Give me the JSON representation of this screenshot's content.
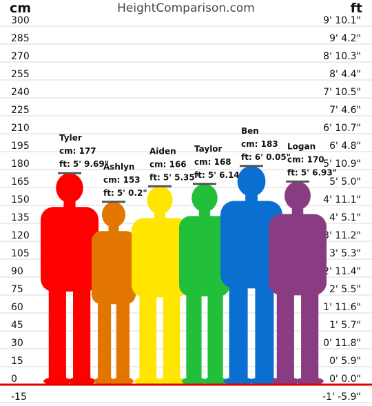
{
  "header": {
    "left_unit": "cm",
    "site_name": "HeightComparison.com",
    "right_unit": "ft"
  },
  "chart_data": {
    "type": "bar",
    "title": "",
    "xlabel": "",
    "ylabel": "cm",
    "ylim": [
      -15,
      300
    ],
    "grid": true,
    "categories": [
      "Tyler",
      "Ashlyn",
      "Aiden",
      "Taylor",
      "Ben",
      "Logan"
    ],
    "series": [
      {
        "values": [
          177,
          153,
          166,
          168,
          183,
          170
        ],
        "ft_labels": [
          "5' 9.69\"",
          "5' 0.2\"",
          "5' 5.35\"",
          "5' 6.14\"",
          "6' 0.05\"",
          "5' 6.93\""
        ],
        "colors": [
          "#ff0000",
          "#e27600",
          "#ffe500",
          "#22c03a",
          "#0a6fd0",
          "#8a3c82"
        ]
      }
    ],
    "y_ticks_cm": [
      "300",
      "285",
      "270",
      "255",
      "240",
      "225",
      "210",
      "195",
      "180",
      "165",
      "150",
      "135",
      "120",
      "105",
      "90",
      "75",
      "60",
      "45",
      "30",
      "15",
      "0",
      "-15"
    ],
    "y_ticks_ft": [
      "9' 10.1\"",
      "9' 4.2\"",
      "8' 10.3\"",
      "8' 4.4\"",
      "7' 10.5\"",
      "7' 4.6\"",
      "6' 10.7\"",
      "6' 4.8\"",
      "5' 10.9\"",
      "5' 5.0\"",
      "4' 11.1\"",
      "4' 5.1\"",
      "3' 11.2\"",
      "3' 5.3\"",
      "2' 11.4\"",
      "2' 5.5\"",
      "1' 11.6\"",
      "1' 5.7\"",
      "0' 11.8\"",
      "0' 5.9\"",
      "0' 0.0\"",
      "-1' -5.9\""
    ],
    "label_prefix_cm": "cm: ",
    "label_prefix_ft": "ft: ",
    "ground_color": "#e00000"
  }
}
